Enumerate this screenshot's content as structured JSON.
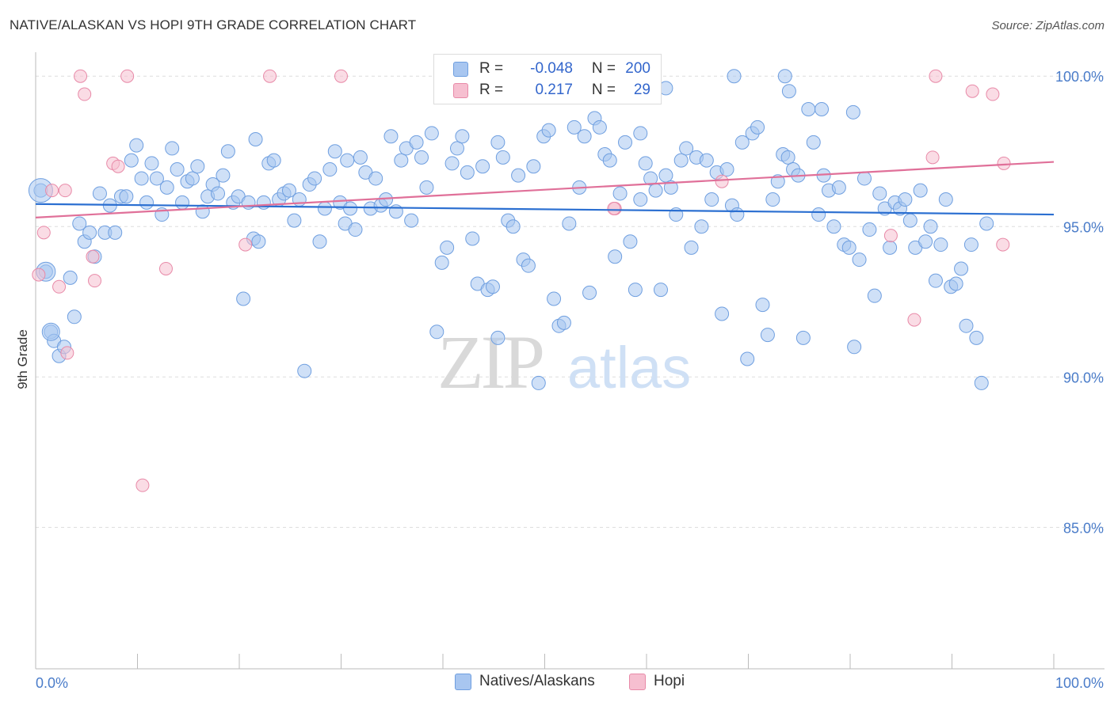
{
  "title": "NATIVE/ALASKAN VS HOPI 9TH GRADE CORRELATION CHART",
  "source": "Source: ZipAtlas.com",
  "watermark": {
    "zip": "ZIP",
    "atlas": "atlas"
  },
  "colors": {
    "blue_fill": "#a8c6f0",
    "blue_stroke": "#6f9fe0",
    "blue_line": "#2b6fd1",
    "pink_fill": "#f6bfd0",
    "pink_stroke": "#e88aa8",
    "pink_line": "#e07099",
    "tick_text": "#4a7cc9",
    "grid": "#dddddd"
  },
  "legend": {
    "rows": [
      {
        "r_label": "R =",
        "r_value": "-0.048",
        "n_label": "N =",
        "n_value": "200"
      },
      {
        "r_label": "R =",
        "r_value": "0.217",
        "n_label": "N =",
        "n_value": "29"
      }
    ]
  },
  "bottom_legend": {
    "series1": "Natives/Alaskans",
    "series2": "Hopi"
  },
  "chart_data": {
    "type": "scatter",
    "title": "NATIVE/ALASKAN VS HOPI 9TH GRADE CORRELATION CHART",
    "xlabel": "",
    "ylabel": "9th Grade",
    "xlim": [
      0,
      100
    ],
    "ylim": [
      80.3,
      100.9
    ],
    "x_tick_labels": [
      "0.0%",
      "100.0%"
    ],
    "y_ticks": [
      85,
      90,
      95,
      100
    ],
    "y_tick_labels": [
      "85.0%",
      "90.0%",
      "95.0%",
      "100.0%"
    ],
    "grid": true,
    "legend_position": "top-center",
    "series": [
      {
        "name": "Natives/Alaskans",
        "R": -0.048,
        "N": 200,
        "trend": {
          "x": [
            0,
            100
          ],
          "y": [
            95.75,
            95.4
          ]
        },
        "points": [
          [
            0.5,
            96.2
          ],
          [
            1.0,
            93.5
          ],
          [
            1.5,
            91.5
          ],
          [
            1.8,
            91.2
          ],
          [
            2.3,
            90.7
          ],
          [
            2.8,
            91.0
          ],
          [
            3.4,
            93.3
          ],
          [
            3.8,
            92.0
          ],
          [
            4.3,
            95.1
          ],
          [
            4.8,
            94.5
          ],
          [
            5.3,
            94.8
          ],
          [
            5.8,
            94.0
          ],
          [
            6.3,
            96.1
          ],
          [
            6.8,
            94.8
          ],
          [
            7.3,
            95.7
          ],
          [
            7.8,
            94.8
          ],
          [
            8.4,
            96.0
          ],
          [
            8.9,
            96.0
          ],
          [
            9.4,
            97.2
          ],
          [
            9.9,
            97.7
          ],
          [
            10.4,
            96.6
          ],
          [
            10.9,
            95.8
          ],
          [
            11.4,
            97.1
          ],
          [
            11.9,
            96.6
          ],
          [
            12.4,
            95.4
          ],
          [
            12.9,
            96.3
          ],
          [
            13.4,
            97.6
          ],
          [
            13.9,
            96.9
          ],
          [
            14.4,
            95.8
          ],
          [
            14.9,
            96.5
          ],
          [
            15.4,
            96.6
          ],
          [
            15.9,
            97.0
          ],
          [
            16.4,
            95.5
          ],
          [
            16.9,
            96.0
          ],
          [
            17.4,
            96.4
          ],
          [
            17.9,
            96.1
          ],
          [
            18.4,
            96.7
          ],
          [
            18.9,
            97.5
          ],
          [
            19.4,
            95.8
          ],
          [
            19.9,
            96.0
          ],
          [
            20.4,
            92.6
          ],
          [
            20.9,
            95.8
          ],
          [
            21.4,
            94.6
          ],
          [
            21.9,
            94.5
          ],
          [
            22.4,
            95.8
          ],
          [
            22.9,
            97.1
          ],
          [
            23.4,
            97.2
          ],
          [
            23.9,
            95.9
          ],
          [
            24.4,
            96.1
          ],
          [
            24.9,
            96.2
          ],
          [
            25.4,
            95.2
          ],
          [
            25.9,
            95.9
          ],
          [
            26.4,
            90.2
          ],
          [
            26.9,
            96.4
          ],
          [
            27.4,
            96.6
          ],
          [
            27.9,
            94.5
          ],
          [
            28.4,
            95.6
          ],
          [
            28.9,
            96.9
          ],
          [
            29.4,
            97.5
          ],
          [
            29.9,
            95.8
          ],
          [
            30.4,
            95.1
          ],
          [
            30.9,
            95.6
          ],
          [
            31.4,
            94.9
          ],
          [
            31.9,
            97.3
          ],
          [
            32.4,
            96.8
          ],
          [
            32.9,
            95.6
          ],
          [
            33.4,
            96.6
          ],
          [
            33.9,
            95.7
          ],
          [
            34.4,
            95.9
          ],
          [
            34.9,
            98.0
          ],
          [
            35.4,
            95.5
          ],
          [
            35.9,
            97.2
          ],
          [
            36.4,
            97.6
          ],
          [
            36.9,
            95.2
          ],
          [
            37.4,
            97.8
          ],
          [
            37.9,
            97.3
          ],
          [
            38.4,
            96.3
          ],
          [
            38.9,
            98.1
          ],
          [
            39.4,
            91.5
          ],
          [
            39.9,
            93.8
          ],
          [
            40.4,
            94.3
          ],
          [
            40.9,
            97.1
          ],
          [
            41.4,
            97.6
          ],
          [
            41.9,
            98.0
          ],
          [
            42.4,
            96.8
          ],
          [
            42.9,
            94.6
          ],
          [
            43.4,
            93.1
          ],
          [
            43.9,
            97.0
          ],
          [
            44.4,
            92.9
          ],
          [
            44.9,
            93.0
          ],
          [
            45.4,
            91.3
          ],
          [
            45.9,
            97.3
          ],
          [
            46.4,
            95.2
          ],
          [
            46.9,
            95.0
          ],
          [
            47.4,
            96.7
          ],
          [
            47.9,
            93.9
          ],
          [
            48.4,
            93.7
          ],
          [
            48.9,
            97.0
          ],
          [
            49.4,
            89.8
          ],
          [
            49.9,
            98.0
          ],
          [
            50.4,
            98.2
          ],
          [
            50.9,
            92.6
          ],
          [
            51.4,
            91.7
          ],
          [
            51.9,
            91.8
          ],
          [
            52.4,
            95.1
          ],
          [
            52.9,
            98.3
          ],
          [
            53.4,
            96.3
          ],
          [
            53.9,
            98.0
          ],
          [
            54.4,
            92.8
          ],
          [
            54.9,
            98.6
          ],
          [
            55.4,
            98.3
          ],
          [
            55.9,
            97.4
          ],
          [
            56.4,
            97.2
          ],
          [
            56.9,
            94.0
          ],
          [
            57.4,
            96.1
          ],
          [
            57.9,
            97.8
          ],
          [
            58.4,
            94.5
          ],
          [
            58.9,
            92.9
          ],
          [
            59.4,
            95.9
          ],
          [
            59.9,
            97.1
          ],
          [
            60.4,
            96.6
          ],
          [
            60.9,
            96.2
          ],
          [
            61.4,
            92.9
          ],
          [
            61.9,
            96.7
          ],
          [
            62.4,
            96.3
          ],
          [
            62.9,
            95.4
          ],
          [
            63.4,
            97.2
          ],
          [
            63.9,
            97.6
          ],
          [
            64.4,
            94.3
          ],
          [
            64.9,
            97.3
          ],
          [
            65.4,
            95.0
          ],
          [
            65.9,
            97.2
          ],
          [
            66.4,
            95.9
          ],
          [
            66.9,
            96.8
          ],
          [
            67.4,
            92.1
          ],
          [
            67.9,
            96.9
          ],
          [
            68.4,
            95.7
          ],
          [
            68.9,
            95.4
          ],
          [
            69.4,
            97.8
          ],
          [
            69.9,
            90.6
          ],
          [
            70.4,
            98.1
          ],
          [
            70.9,
            98.3
          ],
          [
            71.4,
            92.4
          ],
          [
            71.9,
            91.4
          ],
          [
            72.4,
            95.9
          ],
          [
            72.9,
            96.5
          ],
          [
            73.4,
            97.4
          ],
          [
            73.9,
            97.3
          ],
          [
            74.4,
            96.9
          ],
          [
            74.9,
            96.7
          ],
          [
            75.4,
            91.3
          ],
          [
            75.9,
            98.9
          ],
          [
            76.4,
            97.8
          ],
          [
            76.9,
            95.4
          ],
          [
            77.4,
            96.7
          ],
          [
            77.9,
            96.2
          ],
          [
            78.4,
            95.0
          ],
          [
            78.9,
            96.3
          ],
          [
            79.4,
            94.4
          ],
          [
            79.9,
            94.3
          ],
          [
            80.4,
            91.0
          ],
          [
            80.9,
            93.9
          ],
          [
            81.4,
            96.6
          ],
          [
            81.9,
            94.9
          ],
          [
            82.4,
            92.7
          ],
          [
            82.9,
            96.1
          ],
          [
            83.4,
            95.6
          ],
          [
            83.9,
            94.3
          ],
          [
            84.4,
            95.8
          ],
          [
            84.9,
            95.6
          ],
          [
            85.4,
            95.9
          ],
          [
            85.9,
            95.2
          ],
          [
            86.4,
            94.3
          ],
          [
            86.9,
            96.2
          ],
          [
            87.4,
            94.5
          ],
          [
            87.9,
            95.0
          ],
          [
            88.4,
            93.2
          ],
          [
            88.9,
            94.4
          ],
          [
            89.4,
            95.9
          ],
          [
            89.9,
            93.0
          ],
          [
            90.4,
            93.1
          ],
          [
            90.9,
            93.6
          ],
          [
            91.4,
            91.7
          ],
          [
            91.9,
            94.4
          ],
          [
            92.4,
            91.3
          ],
          [
            92.9,
            89.8
          ],
          [
            93.4,
            95.1
          ],
          [
            59.6,
            100.0
          ],
          [
            68.6,
            100.0
          ],
          [
            73.6,
            100.0
          ],
          [
            61.9,
            99.6
          ],
          [
            74.0,
            99.5
          ],
          [
            77.2,
            98.9
          ],
          [
            80.3,
            98.8
          ],
          [
            59.4,
            98.1
          ],
          [
            45.4,
            97.8
          ],
          [
            21.6,
            97.9
          ],
          [
            30.6,
            97.2
          ]
        ]
      },
      {
        "name": "Hopi",
        "R": 0.217,
        "N": 29,
        "trend": {
          "x": [
            0,
            100
          ],
          "y": [
            95.3,
            97.15
          ]
        },
        "points": [
          [
            0.3,
            93.4
          ],
          [
            0.8,
            94.8
          ],
          [
            1.6,
            96.2
          ],
          [
            2.3,
            93.0
          ],
          [
            2.9,
            96.2
          ],
          [
            3.1,
            90.8
          ],
          [
            4.4,
            100.0
          ],
          [
            4.8,
            99.4
          ],
          [
            5.6,
            94.0
          ],
          [
            5.8,
            93.2
          ],
          [
            7.6,
            97.1
          ],
          [
            8.1,
            97.0
          ],
          [
            9.0,
            100.0
          ],
          [
            10.5,
            86.4
          ],
          [
            12.8,
            93.6
          ],
          [
            20.6,
            94.4
          ],
          [
            23.0,
            100.0
          ],
          [
            30.0,
            100.0
          ],
          [
            56.9,
            95.6
          ],
          [
            67.4,
            96.5
          ],
          [
            84.0,
            94.7
          ],
          [
            86.3,
            91.9
          ],
          [
            88.1,
            97.3
          ],
          [
            88.4,
            100.0
          ],
          [
            92.0,
            99.5
          ],
          [
            94.0,
            99.4
          ],
          [
            95.0,
            94.4
          ],
          [
            95.1,
            97.1
          ],
          [
            56.8,
            95.6
          ]
        ]
      }
    ]
  }
}
